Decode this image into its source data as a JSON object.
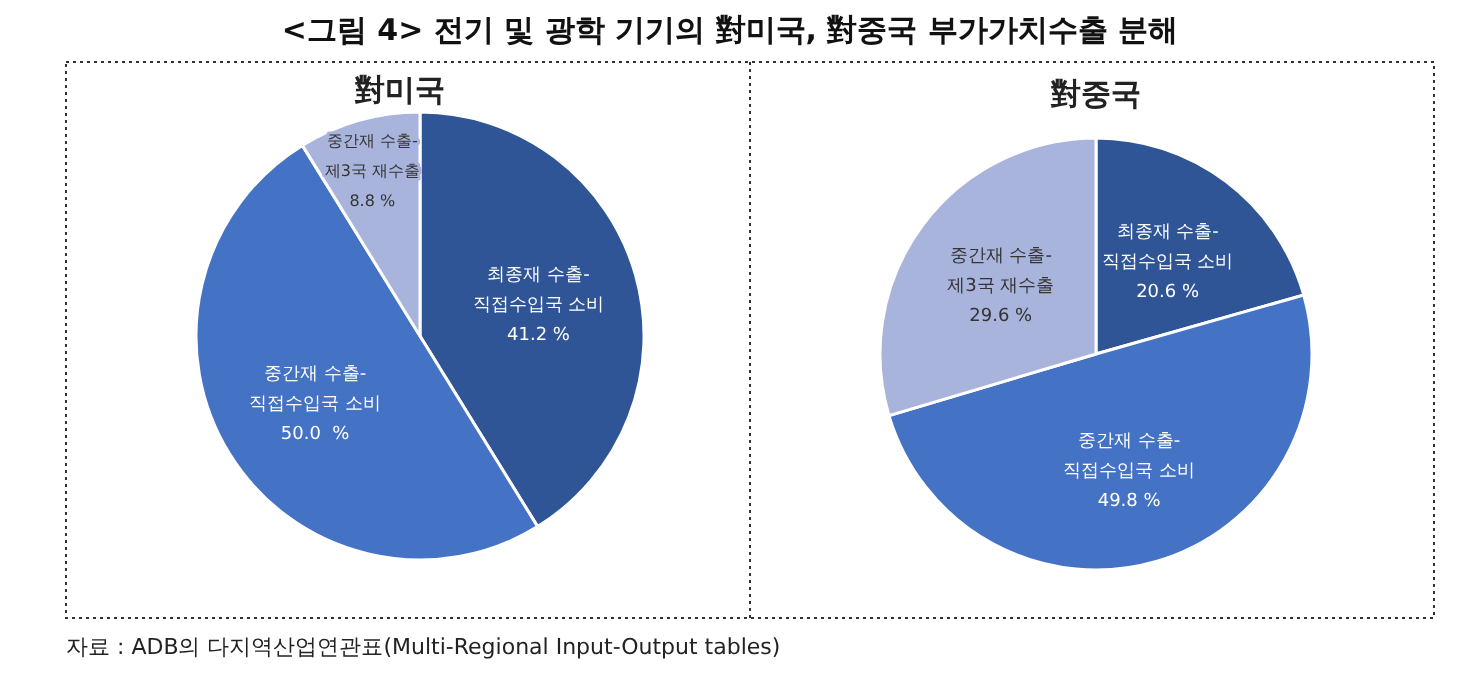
{
  "chart_data": [
    {
      "type": "pie",
      "title": "對미국",
      "annotations": [
        "<그림 4> 전기 및 광학 기기의 對미국, 對중국 부가가치수출 분해",
        "자료 : ADB의 다지역산업연관표(Multi-Regional Input-Output tables)"
      ],
      "categories": [
        "최종재 수출-\n직접수입국 소비",
        "중간재 수출-\n직접수입국 소비",
        "중간재 수출-\n제3국 재수출"
      ],
      "values": [
        41.2,
        50.0,
        8.8
      ],
      "value_labels": [
        "41.2 %",
        "50.0  %",
        "8.8 %"
      ],
      "colors": [
        "#2f5597",
        "#4472c4",
        "#a9b4dc"
      ]
    },
    {
      "type": "pie",
      "title": "對중국",
      "categories": [
        "최종재 수출-\n직접수입국 소비",
        "중간재 수출-\n직접수입국 소비",
        "중간재 수출-\n제3국 재수출"
      ],
      "values": [
        20.6,
        49.8,
        29.6
      ],
      "value_labels": [
        "20.6 %",
        "49.8 %",
        "29.6 %"
      ],
      "colors": [
        "#2f5597",
        "#4472c4",
        "#a9b4dc"
      ]
    }
  ]
}
